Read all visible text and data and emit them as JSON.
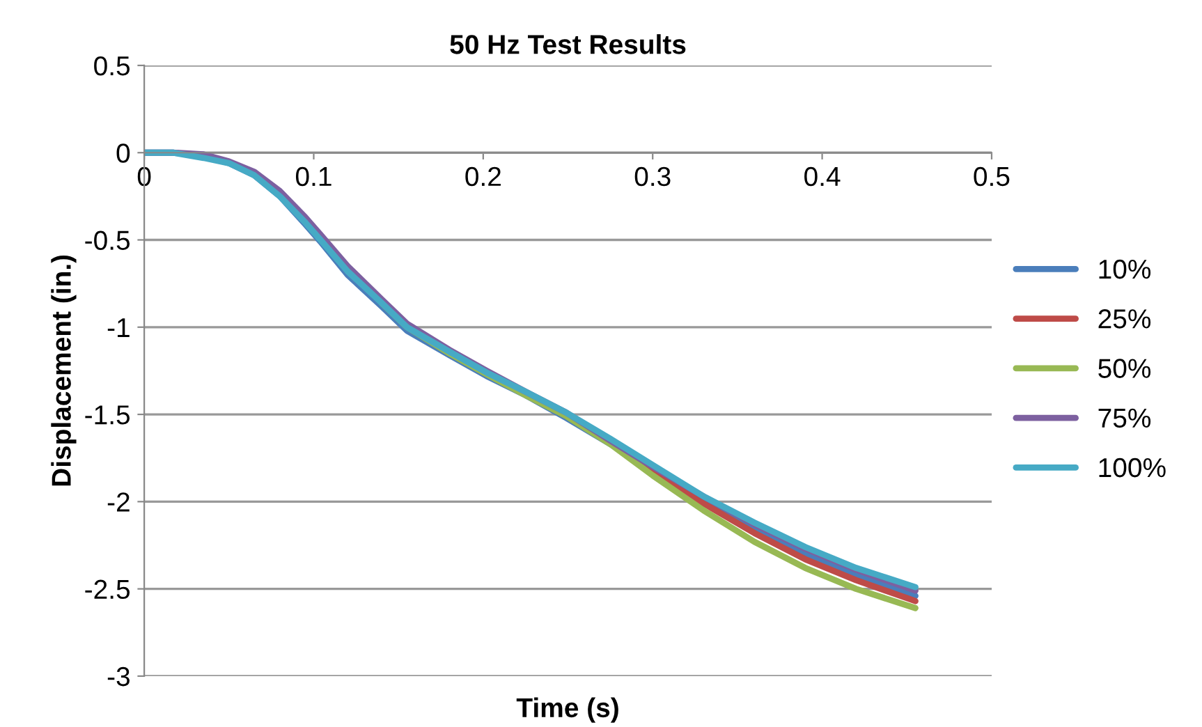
{
  "chart_data": {
    "type": "line",
    "title": "50 Hz Test Results",
    "xlabel": "Time (s)",
    "ylabel": "Displacement (in.)",
    "xlim": [
      0,
      0.5
    ],
    "xticks": [
      0,
      0.1,
      0.2,
      0.3,
      0.4,
      0.5
    ],
    "ylim": [
      -3,
      0.5
    ],
    "yticks": [
      -3,
      -2.5,
      -2,
      -1.5,
      -1,
      -0.5,
      0,
      0.5
    ],
    "grid": "y",
    "legend": "right",
    "marker": "none",
    "line_style": "solid",
    "x": [
      0,
      0.017,
      0.035,
      0.05,
      0.065,
      0.08,
      0.095,
      0.104,
      0.12,
      0.14,
      0.155,
      0.18,
      0.202,
      0.225,
      0.249,
      0.275,
      0.3,
      0.33,
      0.36,
      0.39,
      0.42,
      0.455
    ],
    "series": [
      {
        "name": "10%",
        "color": "#4a7ebb",
        "values": [
          0,
          0,
          -0.02,
          -0.06,
          -0.13,
          -0.25,
          -0.41,
          -0.51,
          -0.7,
          -0.88,
          -1.02,
          -1.16,
          -1.28,
          -1.39,
          -1.52,
          -1.67,
          -1.81,
          -1.99,
          -2.15,
          -2.3,
          -2.42,
          -2.54
        ]
      },
      {
        "name": "25%",
        "color": "#be4b48",
        "values": [
          null,
          null,
          null,
          null,
          null,
          null,
          null,
          null,
          null,
          null,
          null,
          null,
          null,
          null,
          null,
          -1.66,
          -1.83,
          -2.01,
          -2.18,
          -2.33,
          -2.45,
          -2.57
        ]
      },
      {
        "name": "50%",
        "color": "#98b954",
        "values": [
          null,
          null,
          null,
          null,
          null,
          null,
          null,
          null,
          null,
          -0.86,
          -1.0,
          -1.15,
          -1.27,
          -1.39,
          -1.51,
          -1.67,
          -1.85,
          -2.05,
          -2.23,
          -2.38,
          -2.5,
          -2.61
        ]
      },
      {
        "name": "75%",
        "color": "#7d60a0",
        "values": [
          0,
          0,
          -0.01,
          -0.05,
          -0.11,
          -0.22,
          -0.37,
          -0.47,
          -0.65,
          -0.84,
          -0.98,
          -1.13,
          -1.25,
          -1.37,
          -1.49,
          -1.65,
          -1.8,
          -1.97,
          -2.13,
          -2.27,
          -2.39,
          -2.51
        ]
      },
      {
        "name": "100%",
        "color": "#46aac5",
        "values": [
          0,
          0,
          -0.03,
          -0.06,
          -0.13,
          -0.25,
          -0.4,
          -0.5,
          -0.68,
          -0.86,
          -1.0,
          -1.14,
          -1.26,
          -1.37,
          -1.49,
          -1.64,
          -1.79,
          -1.97,
          -2.12,
          -2.26,
          -2.38,
          -2.49
        ]
      }
    ]
  }
}
